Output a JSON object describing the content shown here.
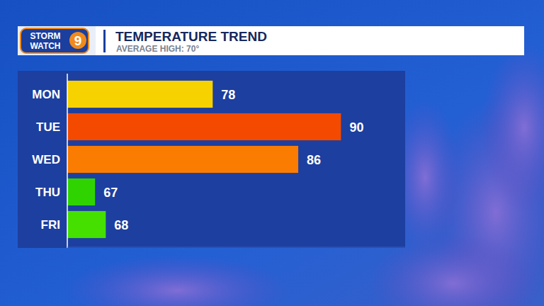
{
  "chart_data": {
    "type": "bar",
    "orientation": "horizontal",
    "title": "TEMPERATURE TREND",
    "subtitle": "AVERAGE HIGH: 70°",
    "annotations": [
      "STORM",
      "WATCH",
      "9"
    ],
    "categories": [
      "MON",
      "TUE",
      "WED",
      "THU",
      "FRI"
    ],
    "values": [
      78,
      90,
      86,
      67,
      68
    ],
    "colors": [
      "#f6d200",
      "#f34a00",
      "#fa7c00",
      "#2fd400",
      "#45e000"
    ],
    "xlim": [
      64.4,
      96
    ],
    "data_labels": true,
    "tick_labels": "y",
    "grid": false
  }
}
